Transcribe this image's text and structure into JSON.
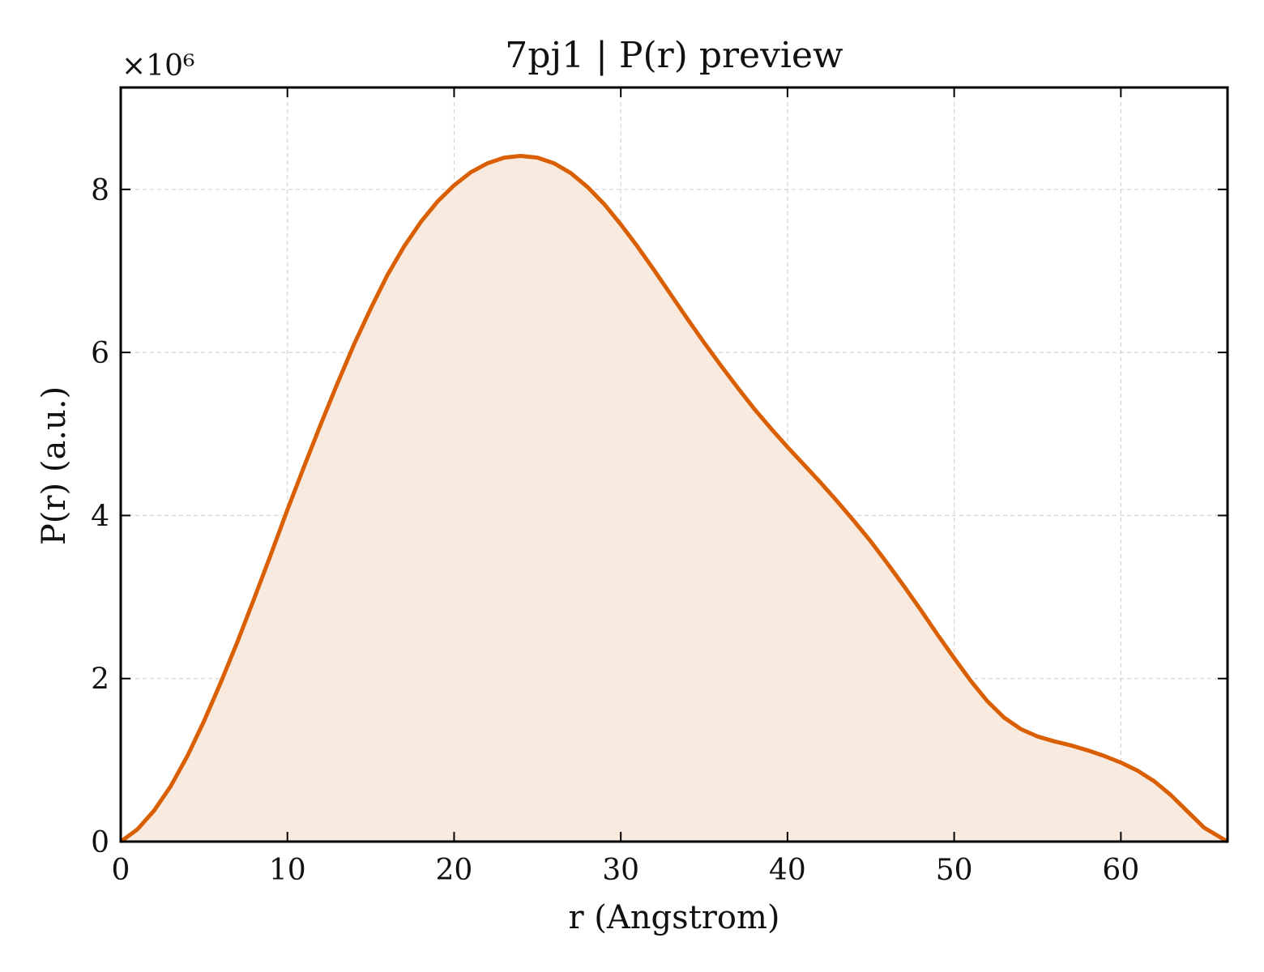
{
  "chart_data": {
    "type": "line",
    "title": "7pj1 | P(r) preview",
    "xlabel": "r (Angstrom)",
    "ylabel": "P(r) (a.u.)",
    "y_scale_label": "×10⁶",
    "xlim": [
      0,
      66.4
    ],
    "ylim": [
      0,
      9.25
    ],
    "y_multiplier": 1000000,
    "x_ticks": [
      0,
      10,
      20,
      30,
      40,
      50,
      60
    ],
    "y_ticks": [
      0,
      2,
      4,
      6,
      8
    ],
    "x_tick_labels": [
      "0",
      "10",
      "20",
      "30",
      "40",
      "50",
      "60"
    ],
    "y_tick_labels": [
      "0",
      "2",
      "4",
      "6",
      "8"
    ],
    "grid": true,
    "fill_under": true,
    "colors": {
      "line": "#d95f02",
      "fill": "#f9eadf"
    },
    "series": [
      {
        "x": [
          0,
          1,
          2,
          3,
          4,
          5,
          6,
          7,
          8,
          9,
          10,
          11,
          12,
          13,
          14,
          15,
          16,
          17,
          18,
          19,
          20,
          21,
          22,
          23,
          24,
          25,
          26,
          27,
          28,
          29,
          30,
          31,
          32,
          33,
          34,
          35,
          36,
          37,
          38,
          39,
          40,
          41,
          42,
          43,
          44,
          45,
          46,
          47,
          48,
          49,
          50,
          51,
          52,
          53,
          54,
          55,
          56,
          57,
          58,
          59,
          60,
          61,
          62,
          63,
          64,
          65,
          66.4
        ],
        "y": [
          0,
          0.15,
          0.38,
          0.68,
          1.05,
          1.48,
          1.95,
          2.45,
          2.98,
          3.52,
          4.07,
          4.6,
          5.12,
          5.62,
          6.1,
          6.54,
          6.95,
          7.3,
          7.6,
          7.85,
          8.05,
          8.21,
          8.32,
          8.39,
          8.41,
          8.39,
          8.32,
          8.2,
          8.03,
          7.82,
          7.57,
          7.3,
          7.01,
          6.71,
          6.41,
          6.12,
          5.84,
          5.57,
          5.31,
          5.07,
          4.84,
          4.62,
          4.4,
          4.17,
          3.93,
          3.68,
          3.41,
          3.13,
          2.84,
          2.54,
          2.25,
          1.97,
          1.72,
          1.52,
          1.38,
          1.29,
          1.23,
          1.18,
          1.12,
          1.05,
          0.97,
          0.87,
          0.74,
          0.57,
          0.37,
          0.17,
          0
        ]
      }
    ]
  }
}
